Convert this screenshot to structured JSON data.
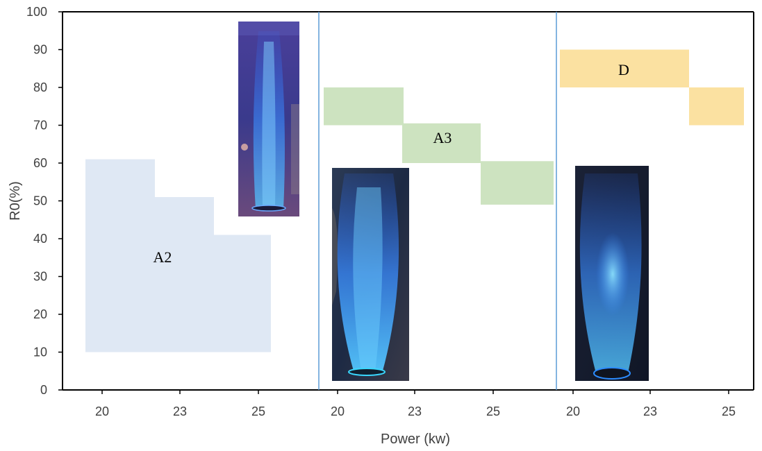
{
  "chart_data": {
    "type": "area",
    "title": "",
    "xlabel": "Power (kw)",
    "ylabel": "R0(%)",
    "ylim": [
      0,
      100
    ],
    "yticks": [
      "0",
      "10",
      "20",
      "30",
      "40",
      "50",
      "60",
      "70",
      "80",
      "90",
      "100"
    ],
    "panels": [
      {
        "xticks": [
          "20",
          "23",
          "25"
        ]
      },
      {
        "xticks": [
          "20",
          "23",
          "25"
        ]
      },
      {
        "xticks": [
          "20",
          "23",
          "25"
        ]
      }
    ],
    "regions": [
      {
        "label": "A2",
        "color": "#dfe8f4",
        "panel": 0,
        "blocks": [
          {
            "x": "20",
            "low": 10,
            "high": 61
          },
          {
            "x": "23",
            "low": 10,
            "high": 51
          },
          {
            "x": "25",
            "low": 10,
            "high": 41
          }
        ]
      },
      {
        "label": "A3",
        "color": "#cde3c0",
        "panel": 1,
        "blocks": [
          {
            "x": "20",
            "low": 70,
            "high": 80
          },
          {
            "x": "23",
            "low": 60,
            "high": 70.5
          },
          {
            "x": "25",
            "low": 49,
            "high": 60.5
          }
        ]
      },
      {
        "label": "D",
        "color": "#fbe1a1",
        "panel": 2,
        "blocks": [
          {
            "x": "20",
            "low": 80,
            "high": 90
          },
          {
            "x": "23",
            "low": 80,
            "high": 90
          },
          {
            "x": "25",
            "low": 70,
            "high": 80
          }
        ]
      }
    ],
    "photos": [
      {
        "name": "flame-photo-a2",
        "panel": 0
      },
      {
        "name": "flame-photo-a3",
        "panel": 1
      },
      {
        "name": "flame-photo-d",
        "panel": 2
      }
    ],
    "colors": {
      "axis": "#000000",
      "divider": "#5b9bd5",
      "tick_text": "#404040",
      "flame": "#2f7fff"
    }
  }
}
